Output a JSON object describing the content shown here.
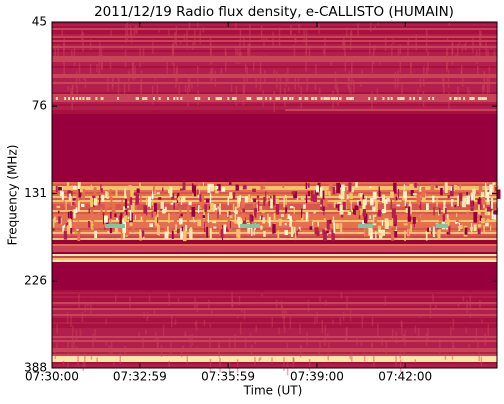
{
  "chart_data": {
    "type": "spectrogram",
    "title": "2011/12/19  Radio flux density, e-CALLISTO (HUMAIN)",
    "x_label": "Time (UT)",
    "y_label": "Frequency (MHz)",
    "xlim": [
      "07:30:00",
      "07:45:07"
    ],
    "xticks": [
      "07:30:00",
      "07:32:59",
      "07:35:59",
      "07:39:00",
      "07:42:00"
    ],
    "ylim": [
      45,
      388
    ],
    "yticks": [
      45,
      76,
      131,
      226,
      388
    ],
    "y_log": true,
    "y_inverted": true
  }
}
